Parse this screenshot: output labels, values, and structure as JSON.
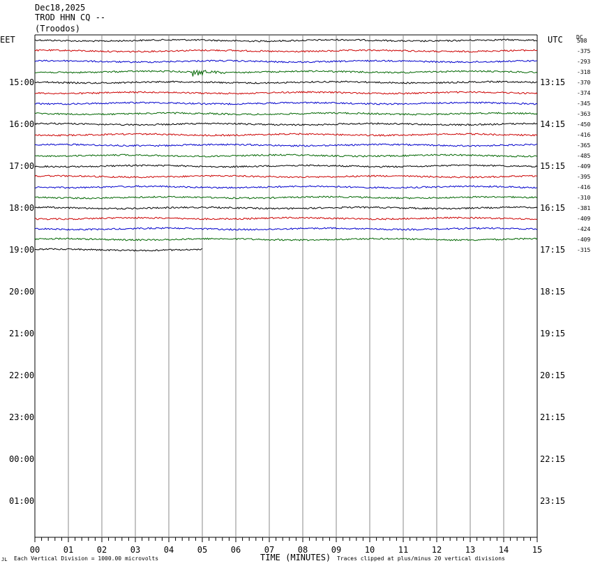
{
  "header": {
    "date": "Dec18,2025",
    "station": "TROD HHN CQ --",
    "location": "(Troodos)"
  },
  "left_axis_title": "EET",
  "right_axis_title": "UTC",
  "dc_title": "DC",
  "footer": {
    "division_note": "Each Vertical Division = 1000.00 microvolts",
    "xlabel": "TIME (MINUTES)",
    "clip_note": "Traces clipped at plus/minus 20 vertical divisions",
    "corner_mark": "JL"
  },
  "colors": {
    "trace_cycle": [
      "#000000",
      "#cc0000",
      "#0000cc",
      "#006600"
    ],
    "grid": "#888888"
  },
  "chart_data": {
    "type": "line",
    "x_ticks": [
      "00",
      "01",
      "02",
      "03",
      "04",
      "05",
      "06",
      "07",
      "08",
      "09",
      "10",
      "11",
      "12",
      "13",
      "14",
      "15"
    ],
    "xlim": [
      0,
      15
    ],
    "left_hour_labels": [
      "15:00",
      "16:00",
      "17:00",
      "18:00",
      "19:00",
      "20:00",
      "21:00",
      "22:00",
      "23:00",
      "00:00",
      "01:00"
    ],
    "right_hour_labels": [
      "13:15",
      "14:15",
      "15:15",
      "16:15",
      "17:15",
      "18:15",
      "19:15",
      "20:15",
      "21:15",
      "22:15",
      "23:15"
    ],
    "first_hour_label_row": 4,
    "rows_per_hour": 4,
    "total_rows": 48,
    "trace_rows": [
      {
        "dc": "508",
        "color_index": 0,
        "end_minute": 15
      },
      {
        "dc": "-375",
        "color_index": 1,
        "end_minute": 15
      },
      {
        "dc": "-293",
        "color_index": 2,
        "end_minute": 15
      },
      {
        "dc": "-318",
        "color_index": 3,
        "end_minute": 15,
        "event": {
          "minute": 4.7,
          "amplitude": 7
        }
      },
      {
        "dc": "-370",
        "color_index": 0,
        "end_minute": 15
      },
      {
        "dc": "-374",
        "color_index": 1,
        "end_minute": 15
      },
      {
        "dc": "-345",
        "color_index": 2,
        "end_minute": 15
      },
      {
        "dc": "-363",
        "color_index": 3,
        "end_minute": 15
      },
      {
        "dc": "-450",
        "color_index": 0,
        "end_minute": 15
      },
      {
        "dc": "-416",
        "color_index": 1,
        "end_minute": 15
      },
      {
        "dc": "-365",
        "color_index": 2,
        "end_minute": 15
      },
      {
        "dc": "-485",
        "color_index": 3,
        "end_minute": 15
      },
      {
        "dc": "-409",
        "color_index": 0,
        "end_minute": 15
      },
      {
        "dc": "-395",
        "color_index": 1,
        "end_minute": 15
      },
      {
        "dc": "-416",
        "color_index": 2,
        "end_minute": 15
      },
      {
        "dc": "-310",
        "color_index": 3,
        "end_minute": 15
      },
      {
        "dc": "-381",
        "color_index": 0,
        "end_minute": 15
      },
      {
        "dc": "-409",
        "color_index": 1,
        "end_minute": 15
      },
      {
        "dc": "-424",
        "color_index": 2,
        "end_minute": 15
      },
      {
        "dc": "-409",
        "color_index": 3,
        "end_minute": 15
      },
      {
        "dc": "-315",
        "color_index": 0,
        "end_minute": 5
      }
    ]
  }
}
